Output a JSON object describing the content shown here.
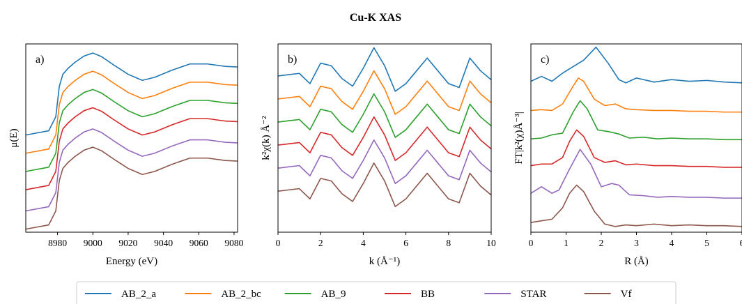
{
  "figure_title": "Cu-K XAS",
  "legend": {
    "placement": "bottom-center",
    "entries": [
      "AB_2_a",
      "AB_2_bc",
      "AB_9",
      "BB",
      "STAR",
      "Vf"
    ]
  },
  "colors": {
    "AB_2_a": "#1f77b4",
    "AB_2_bc": "#ff7f0e",
    "AB_9": "#2ca02c",
    "BB": "#d62728",
    "STAR": "#9467bd",
    "Vf": "#8c564b"
  },
  "chart_data": [
    {
      "type": "line",
      "panel_label": "a)",
      "xlabel": "Energy (eV)",
      "ylabel": "μ(E)",
      "xlim": [
        8962,
        9082
      ],
      "ylim": [
        0,
        3.1
      ],
      "xticks": [
        8980,
        9000,
        9020,
        9040,
        9060,
        9080
      ],
      "y_ticks_shown": false,
      "series": [
        {
          "name": "AB_2_a",
          "offset": 1.55,
          "x": [
            8962,
            8975,
            8979,
            8981,
            8983,
            8986,
            8990,
            8995,
            9000,
            9005,
            9012,
            9020,
            9028,
            9035,
            9045,
            9055,
            9065,
            9075,
            9082
          ],
          "y": [
            0.05,
            0.12,
            0.35,
            0.85,
            1.05,
            1.15,
            1.25,
            1.35,
            1.4,
            1.34,
            1.2,
            1.05,
            0.95,
            1.0,
            1.12,
            1.22,
            1.22,
            1.18,
            1.17
          ]
        },
        {
          "name": "AB_2_bc",
          "offset": 1.25,
          "x": [
            8962,
            8975,
            8979,
            8981,
            8983,
            8986,
            8990,
            8995,
            9000,
            9005,
            9012,
            9020,
            9028,
            9035,
            9045,
            9055,
            9065,
            9075,
            9082
          ],
          "y": [
            0.05,
            0.12,
            0.35,
            0.85,
            1.05,
            1.15,
            1.25,
            1.35,
            1.4,
            1.34,
            1.2,
            1.05,
            0.95,
            1.0,
            1.12,
            1.22,
            1.22,
            1.18,
            1.17
          ]
        },
        {
          "name": "AB_9",
          "offset": 0.95,
          "x": [
            8962,
            8975,
            8979,
            8981,
            8983,
            8986,
            8990,
            8995,
            9000,
            9005,
            9012,
            9020,
            9028,
            9035,
            9045,
            9055,
            9065,
            9075,
            9082
          ],
          "y": [
            0.05,
            0.12,
            0.35,
            0.85,
            1.05,
            1.15,
            1.25,
            1.35,
            1.4,
            1.34,
            1.2,
            1.05,
            0.95,
            1.0,
            1.12,
            1.22,
            1.22,
            1.18,
            1.17
          ]
        },
        {
          "name": "BB",
          "offset": 0.65,
          "x": [
            8962,
            8975,
            8979,
            8981,
            8983,
            8986,
            8990,
            8995,
            9000,
            9005,
            9012,
            9020,
            9028,
            9035,
            9045,
            9055,
            9065,
            9075,
            9082
          ],
          "y": [
            0.05,
            0.12,
            0.35,
            0.85,
            1.05,
            1.15,
            1.25,
            1.35,
            1.4,
            1.34,
            1.2,
            1.05,
            0.95,
            1.0,
            1.12,
            1.22,
            1.22,
            1.18,
            1.17
          ]
        },
        {
          "name": "STAR",
          "offset": 0.3,
          "x": [
            8962,
            8975,
            8979,
            8981,
            8983,
            8986,
            8990,
            8995,
            9000,
            9005,
            9012,
            9020,
            9028,
            9035,
            9045,
            9055,
            9065,
            9075,
            9082
          ],
          "y": [
            0.05,
            0.12,
            0.35,
            0.85,
            1.05,
            1.15,
            1.25,
            1.35,
            1.4,
            1.34,
            1.2,
            1.05,
            0.95,
            1.0,
            1.12,
            1.22,
            1.22,
            1.18,
            1.17
          ]
        },
        {
          "name": "Vf",
          "offset": 0.0,
          "x": [
            8962,
            8975,
            8979,
            8981,
            8983,
            8986,
            8990,
            8995,
            9000,
            9005,
            9012,
            9020,
            9028,
            9035,
            9045,
            9055,
            9065,
            9075,
            9082
          ],
          "y": [
            0.05,
            0.12,
            0.35,
            0.85,
            1.05,
            1.15,
            1.25,
            1.35,
            1.4,
            1.34,
            1.2,
            1.05,
            0.95,
            1.0,
            1.12,
            1.22,
            1.22,
            1.18,
            1.17
          ]
        }
      ]
    },
    {
      "type": "line",
      "panel_label": "b)",
      "xlabel": "k (Å⁻¹)",
      "ylabel": "k²χ(k) Å⁻²",
      "xlim": [
        0,
        10
      ],
      "ylim": [
        -3.2,
        11.5
      ],
      "xticks": [
        0,
        2,
        4,
        6,
        8,
        10
      ],
      "y_ticks_shown": false,
      "series": [
        {
          "name": "AB_2_a",
          "offset": 9.0,
          "x": [
            0,
            0.5,
            1,
            1.5,
            2,
            2.5,
            3,
            3.5,
            4,
            4.5,
            5,
            5.5,
            6,
            6.5,
            7,
            7.5,
            8,
            8.5,
            9,
            9.5,
            10
          ],
          "y": [
            0,
            0.1,
            0.2,
            -0.6,
            1.0,
            0.8,
            -0.2,
            -0.8,
            0.6,
            2.2,
            0.8,
            -1.2,
            -0.6,
            0.4,
            1.4,
            0.4,
            -0.6,
            -0.9,
            1.4,
            0.4,
            -0.3
          ]
        },
        {
          "name": "AB_2_bc",
          "offset": 7.2,
          "x": [
            0,
            0.5,
            1,
            1.5,
            2,
            2.5,
            3,
            3.5,
            4,
            4.5,
            5,
            5.5,
            6,
            6.5,
            7,
            7.5,
            8,
            8.5,
            9,
            9.5,
            10
          ],
          "y": [
            0,
            0.1,
            0.2,
            -0.6,
            1.0,
            0.8,
            -0.2,
            -0.8,
            0.6,
            2.2,
            0.8,
            -1.2,
            -0.6,
            0.4,
            1.4,
            0.4,
            -0.6,
            -0.9,
            1.4,
            0.4,
            -0.3
          ]
        },
        {
          "name": "AB_9",
          "offset": 5.4,
          "x": [
            0,
            0.5,
            1,
            1.5,
            2,
            2.5,
            3,
            3.5,
            4,
            4.5,
            5,
            5.5,
            6,
            6.5,
            7,
            7.5,
            8,
            8.5,
            9,
            9.5,
            10
          ],
          "y": [
            0,
            0.1,
            0.2,
            -0.6,
            1.0,
            0.8,
            -0.2,
            -0.8,
            0.6,
            2.2,
            0.8,
            -1.2,
            -0.6,
            0.4,
            1.4,
            0.4,
            -0.6,
            -0.9,
            1.4,
            0.4,
            -0.3
          ]
        },
        {
          "name": "BB",
          "offset": 3.6,
          "x": [
            0,
            0.5,
            1,
            1.5,
            2,
            2.5,
            3,
            3.5,
            4,
            4.5,
            5,
            5.5,
            6,
            6.5,
            7,
            7.5,
            8,
            8.5,
            9,
            9.5,
            10
          ],
          "y": [
            0,
            0.1,
            0.2,
            -0.6,
            1.0,
            0.8,
            -0.2,
            -0.8,
            0.6,
            2.2,
            0.8,
            -1.2,
            -0.6,
            0.4,
            1.4,
            0.4,
            -0.6,
            -0.9,
            1.4,
            0.4,
            -0.3
          ]
        },
        {
          "name": "STAR",
          "offset": 1.8,
          "x": [
            0,
            0.5,
            1,
            1.5,
            2,
            2.5,
            3,
            3.5,
            4,
            4.5,
            5,
            5.5,
            6,
            6.5,
            7,
            7.5,
            8,
            8.5,
            9,
            9.5,
            10
          ],
          "y": [
            0,
            0.1,
            0.2,
            -0.6,
            1.0,
            0.8,
            -0.2,
            -0.8,
            0.6,
            2.2,
            0.8,
            -1.2,
            -0.6,
            0.4,
            1.4,
            0.4,
            -0.6,
            -0.9,
            1.4,
            0.4,
            -0.3
          ]
        },
        {
          "name": "Vf",
          "offset": 0.0,
          "x": [
            0,
            0.5,
            1,
            1.5,
            2,
            2.5,
            3,
            3.5,
            4,
            4.5,
            5,
            5.5,
            6,
            6.5,
            7,
            7.5,
            8,
            8.5,
            9,
            9.5,
            10
          ],
          "y": [
            0,
            0.1,
            0.2,
            -0.6,
            1.0,
            0.8,
            -0.2,
            -0.8,
            0.6,
            2.2,
            0.8,
            -1.2,
            -0.6,
            0.4,
            1.4,
            0.4,
            -0.6,
            -0.9,
            1.4,
            0.4,
            -0.3
          ]
        }
      ]
    },
    {
      "type": "line",
      "panel_label": "c)",
      "xlabel": "R (Å)",
      "ylabel": "FT|k²(χ)Å⁻³|",
      "xlim": [
        0,
        6
      ],
      "ylim": [
        -0.3,
        11.3
      ],
      "xticks": [
        0,
        1,
        2,
        3,
        4,
        5,
        6
      ],
      "y_ticks_shown": false,
      "series": [
        {
          "name": "AB_2_a",
          "offset": 8.8,
          "x": [
            0,
            0.3,
            0.6,
            0.9,
            1.2,
            1.5,
            1.85,
            2.2,
            2.5,
            2.7,
            3.0,
            3.5,
            4.0,
            4.5,
            5.0,
            5.5,
            6.0
          ],
          "y": [
            0.2,
            0.5,
            0.2,
            0.7,
            1.1,
            1.5,
            2.3,
            1.3,
            0.3,
            0.1,
            0.4,
            0.15,
            0.3,
            0.2,
            0.25,
            0.15,
            0.1
          ]
        },
        {
          "name": "AB_2_bc",
          "offset": 7.0,
          "x": [
            0,
            0.3,
            0.6,
            0.9,
            1.2,
            1.35,
            1.5,
            1.8,
            2.1,
            2.4,
            2.7,
            3.0,
            3.5,
            4.0,
            4.5,
            5.0,
            5.5,
            6.0
          ],
          "y": [
            0.2,
            0.25,
            0.2,
            0.6,
            1.7,
            2.2,
            2.0,
            0.9,
            0.5,
            0.6,
            0.3,
            0.25,
            0.2,
            0.2,
            0.15,
            0.15,
            0.1,
            0.1
          ]
        },
        {
          "name": "AB_9",
          "offset": 5.3,
          "x": [
            0,
            0.3,
            0.6,
            0.9,
            1.2,
            1.4,
            1.6,
            1.9,
            2.2,
            2.5,
            2.8,
            3.2,
            3.6,
            4.0,
            4.5,
            5.0,
            5.5,
            6.0
          ],
          "y": [
            0.15,
            0.2,
            0.4,
            0.5,
            1.8,
            2.5,
            2.0,
            0.7,
            0.6,
            0.45,
            0.2,
            0.25,
            0.15,
            0.2,
            0.15,
            0.15,
            0.1,
            0.1
          ]
        },
        {
          "name": "BB",
          "offset": 3.6,
          "x": [
            0,
            0.3,
            0.6,
            0.9,
            1.1,
            1.3,
            1.5,
            1.8,
            2.1,
            2.4,
            2.7,
            3.0,
            3.5,
            4.0,
            4.5,
            5.0,
            5.5,
            6.0
          ],
          "y": [
            0.2,
            0.3,
            0.3,
            0.7,
            1.7,
            2.4,
            2.0,
            0.7,
            0.4,
            0.5,
            0.25,
            0.3,
            0.2,
            0.2,
            0.15,
            0.15,
            0.1,
            0.1
          ]
        },
        {
          "name": "STAR",
          "offset": 1.7,
          "x": [
            0,
            0.3,
            0.6,
            0.8,
            1.1,
            1.4,
            1.7,
            2.0,
            2.3,
            2.5,
            2.8,
            3.2,
            3.6,
            4.0,
            4.5,
            5.0,
            5.5,
            6.0
          ],
          "y": [
            0.4,
            0.8,
            0.4,
            0.6,
            1.9,
            3.1,
            2.2,
            0.8,
            1.0,
            0.9,
            0.3,
            0.25,
            0.15,
            0.2,
            0.15,
            0.15,
            0.1,
            0.1
          ]
        },
        {
          "name": "Vf",
          "offset": 0.0,
          "x": [
            0,
            0.3,
            0.6,
            0.9,
            1.1,
            1.3,
            1.5,
            1.8,
            2.1,
            2.4,
            2.7,
            3.0,
            3.5,
            4.0,
            4.5,
            5.0,
            5.5,
            6.0
          ],
          "y": [
            0.3,
            0.4,
            0.5,
            1.2,
            2.1,
            2.6,
            2.2,
            1.0,
            0.2,
            0.05,
            0.15,
            0.1,
            0.2,
            0.1,
            0.15,
            0.1,
            0.1,
            0.05
          ]
        }
      ]
    }
  ]
}
